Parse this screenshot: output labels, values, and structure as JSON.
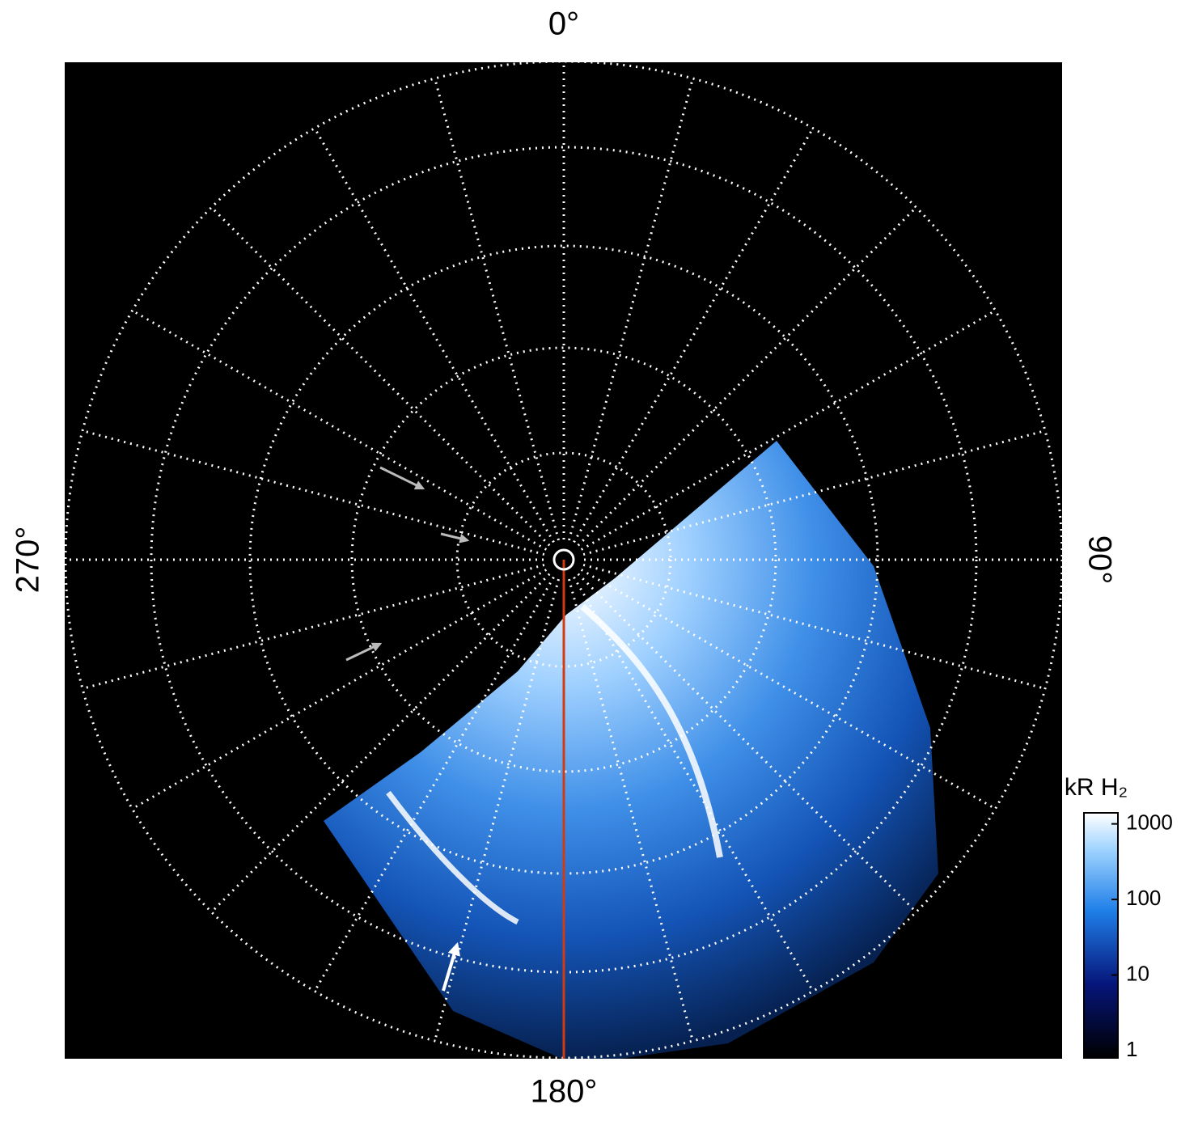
{
  "chart_data": {
    "type": "polar-map",
    "angle_labels": [
      {
        "value": 0,
        "label": "0°"
      },
      {
        "value": 90,
        "label": "90°"
      },
      {
        "value": 180,
        "label": "180°"
      },
      {
        "value": 270,
        "label": "270°"
      }
    ],
    "colorbar": {
      "label": "kR H₂",
      "log": true,
      "lim": [
        0.8,
        1400
      ],
      "ticks": [
        1,
        10,
        100,
        1000
      ]
    }
  }
}
